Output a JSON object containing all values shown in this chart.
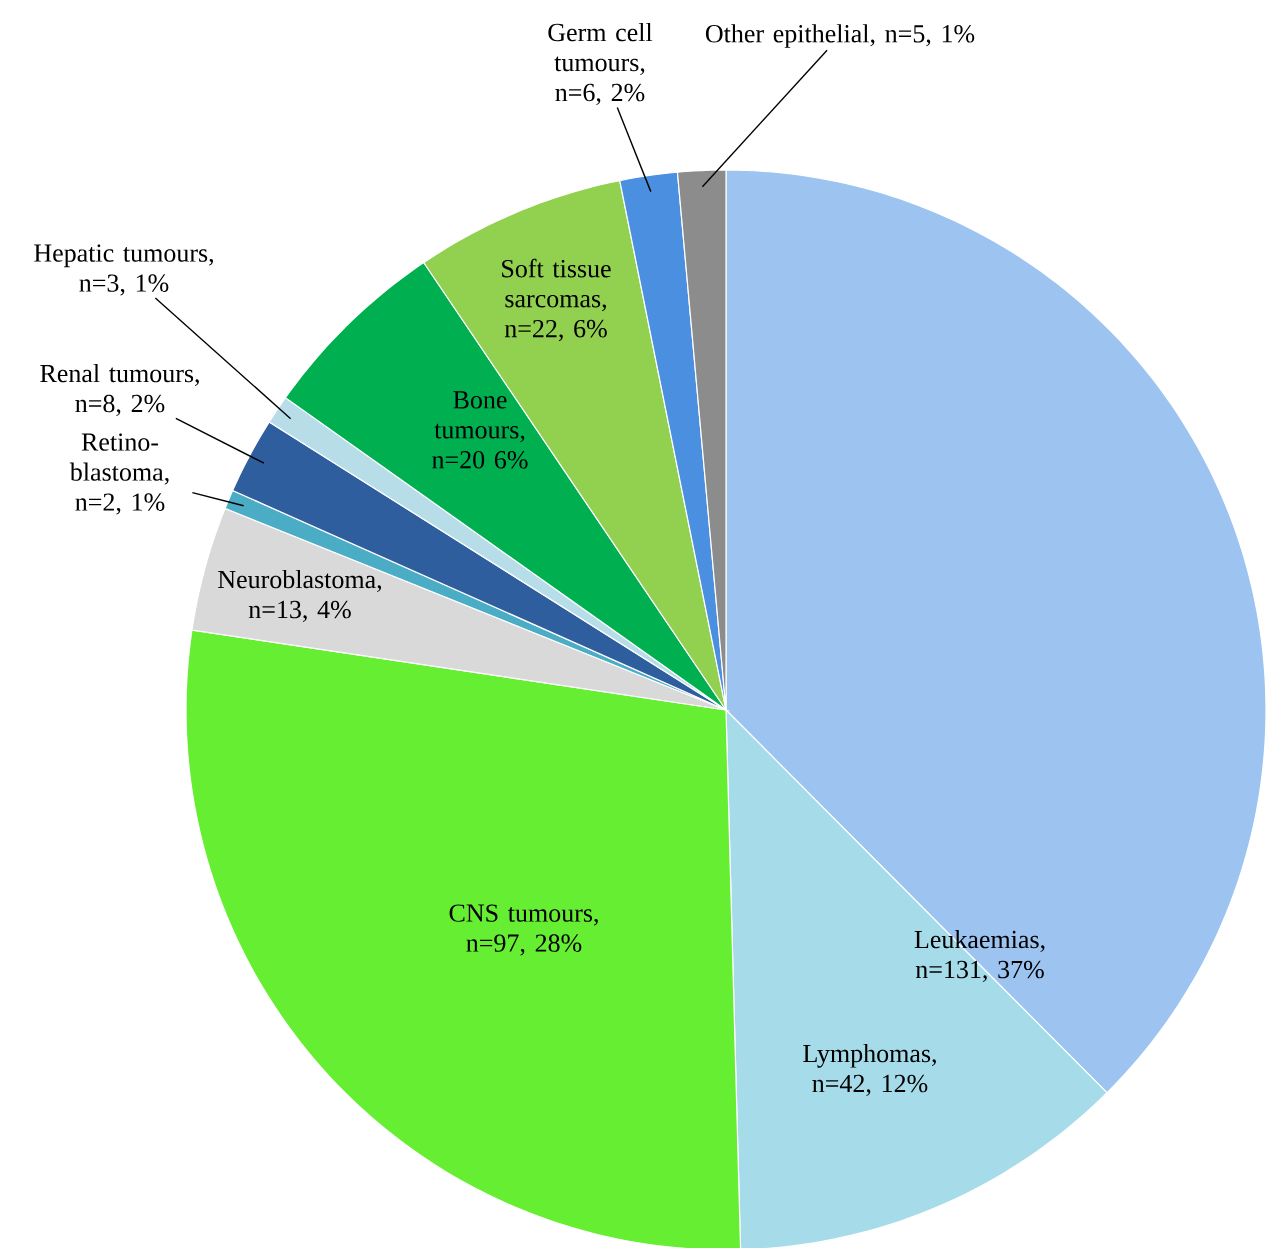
{
  "chart_data": {
    "type": "pie",
    "categories": [
      "Leukaemias, n=131, 37%",
      "Lymphomas, n=42, 12%",
      "CNS tumours, n=97, 28%",
      "Neuroblastoma, n=13, 4%",
      "Retino-blastoma, n=2, 1%",
      "Renal tumours, n=8,  2%",
      "Hepatic tumours, n=3, 1%",
      "Bone tumours, n=20 6%",
      "Soft tissue sarcomas, n=22, 6%",
      "Germ cell tumours, n=6, 2%",
      "Other epithelial, n=5, 1%"
    ],
    "values": [
      131,
      42,
      97,
      13,
      2,
      8,
      3,
      20,
      22,
      6,
      5
    ],
    "colors": [
      "#9dc3f0",
      "#a6dcea",
      "#66ee33",
      "#d9d9d9",
      "#4bacc6",
      "#2e5e9e",
      "#b7dee8",
      "#00b050",
      "#92d050",
      "#4a8fe0",
      "#8c8c8c"
    ]
  }
}
